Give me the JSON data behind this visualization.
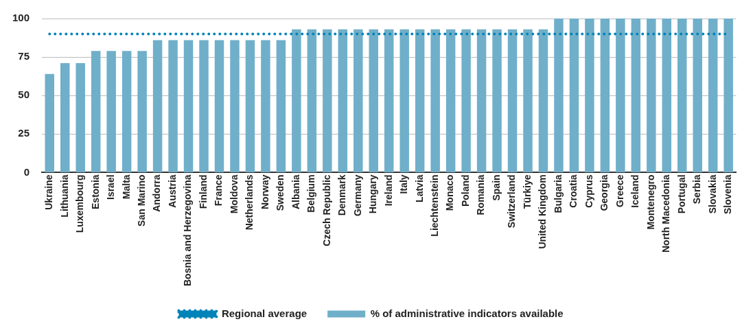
{
  "chart_data": {
    "type": "bar",
    "categories": [
      "Ukraine",
      "Lithuania",
      "Luxembourg",
      "Estonia",
      "Israel",
      "Malta",
      "San Marino",
      "Andorra",
      "Austria",
      "Bosnia and Herzegovina",
      "Finland",
      "France",
      "Moldova",
      "Netherlands",
      "Norway",
      "Sweden",
      "Albania",
      "Belgium",
      "Czech Republic",
      "Denmark",
      "Germany",
      "Hungary",
      "Ireland",
      "Italy",
      "Latvia",
      "Liechtenstein",
      "Monaco",
      "Poland",
      "Romania",
      "Spain",
      "Switzerland",
      "Türkiye",
      "United Kingdom",
      "Bulgaria",
      "Croatia",
      "Cyprus",
      "Georgia",
      "Greece",
      "Iceland",
      "Montenegro",
      "North Macedonia",
      "Portugal",
      "Serbia",
      "Slovakia",
      "Slovenia"
    ],
    "series": [
      {
        "name": "% of administrative indicators available",
        "color": "#70afc9",
        "values": [
          64,
          71,
          71,
          79,
          79,
          79,
          79,
          86,
          86,
          86,
          86,
          86,
          86,
          86,
          86,
          86,
          93,
          93,
          93,
          93,
          93,
          93,
          93,
          93,
          93,
          93,
          93,
          93,
          93,
          93,
          93,
          93,
          93,
          100,
          100,
          100,
          100,
          100,
          100,
          100,
          100,
          100,
          100,
          100,
          100
        ]
      },
      {
        "name": "Regional average",
        "type": "line",
        "color": "#0083b8",
        "line_style": "dotted",
        "marker": "none",
        "values": [
          90,
          90,
          90,
          90,
          90,
          90,
          90,
          90,
          90,
          90,
          90,
          90,
          90,
          90,
          90,
          90,
          90,
          90,
          90,
          90,
          90,
          90,
          90,
          90,
          90,
          90,
          90,
          90,
          90,
          90,
          90,
          90,
          90,
          90,
          90,
          90,
          90,
          90,
          90,
          90,
          90,
          90,
          90,
          90,
          90
        ]
      }
    ],
    "ylim": [
      0,
      100
    ],
    "yticks": [
      0,
      25,
      50,
      75,
      100
    ],
    "grid": "y",
    "legend": "bottom"
  }
}
